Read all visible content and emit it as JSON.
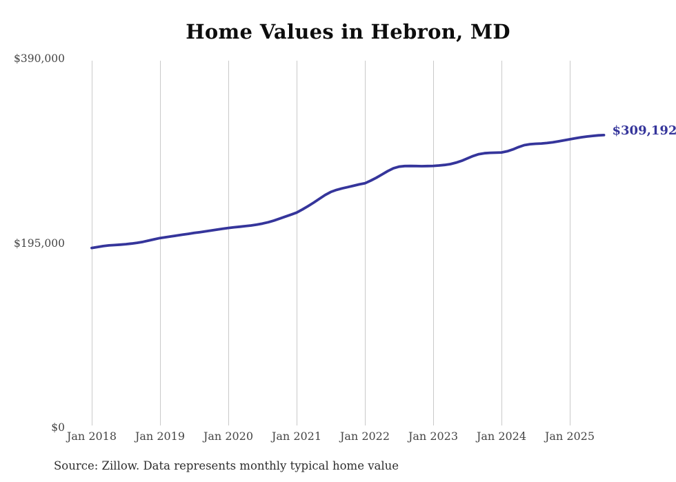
{
  "title": "Home Values in Hebron, MD",
  "end_label": "$309,192",
  "source_note": "Source: Zillow. Data represents monthly typical home value",
  "colors": {
    "line": "#35359B",
    "end_label": "#35359B",
    "grid": "#c9c9c9",
    "axis_text": "#454545",
    "title_text": "#0d0d0d",
    "source_text": "#2e2e2e",
    "background": "#ffffff"
  },
  "chart_data": {
    "type": "line",
    "title": "Home Values in Hebron, MD",
    "xlabel": "",
    "ylabel": "",
    "ylim": [
      0,
      390000
    ],
    "y_ticks": [
      390000,
      195000,
      0
    ],
    "y_tick_labels": [
      "$390,000",
      "$195,000",
      "$0"
    ],
    "x_tick_labels": [
      "Jan 2018",
      "Jan 2019",
      "Jan 2020",
      "Jan 2021",
      "Jan 2022",
      "Jan 2023",
      "Jan 2024",
      "Jan 2025"
    ],
    "grid": "vertical-only",
    "legend": "none",
    "annotation_last_value": "$309,192",
    "series": [
      {
        "name": "Monthly typical home value",
        "start_month": "2018-01",
        "end_month": "2025-07",
        "frequency": "monthly",
        "last_value": 309192,
        "values": [
          189800,
          190800,
          191800,
          192500,
          192900,
          193300,
          193800,
          194500,
          195300,
          196300,
          197600,
          199000,
          200300,
          201200,
          202100,
          203000,
          203900,
          204800,
          205700,
          206500,
          207400,
          208300,
          209200,
          210100,
          211000,
          211700,
          212300,
          212900,
          213600,
          214500,
          215600,
          217000,
          218800,
          220800,
          222900,
          225000,
          227200,
          230500,
          234000,
          237800,
          241800,
          245800,
          249000,
          251200,
          252800,
          254200,
          255600,
          257000,
          258200,
          261000,
          264000,
          267500,
          271000,
          274000,
          275800,
          276400,
          276500,
          276400,
          276300,
          276400,
          276600,
          277000,
          277600,
          278500,
          280000,
          282000,
          284500,
          287000,
          289000,
          290000,
          290400,
          290600,
          290800,
          292000,
          294000,
          296500,
          298500,
          299500,
          300000,
          300300,
          300800,
          301500,
          302500,
          303600,
          304700,
          305800,
          306800,
          307600,
          308300,
          308900,
          309192
        ]
      }
    ]
  }
}
